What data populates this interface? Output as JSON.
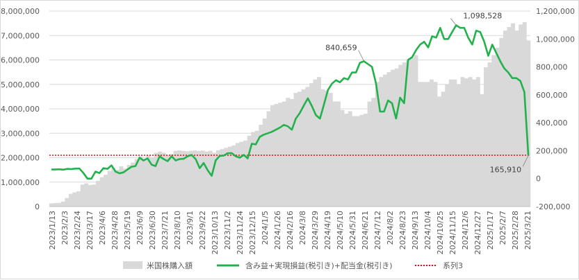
{
  "chart_data": {
    "type": "bar",
    "x_ticks": [
      "2023/1/13",
      "2023/2/3",
      "2023/2/24",
      "2023/3/17",
      "2023/4/6",
      "2023/4/28",
      "2023/5/19",
      "2023/6/9",
      "2023/6/30",
      "2023/7/21",
      "2023/8/10",
      "2023/9/1",
      "2023/9/22",
      "2023/10/13",
      "2023/11/2",
      "2023/11/24",
      "2023/12/15",
      "2024/1/5",
      "2024/1/26",
      "2024/2/16",
      "2024/3/8",
      "2024/3/29",
      "2024/4/19",
      "2024/5/10",
      "2024/5/31",
      "2024/6/21",
      "2024/7/12",
      "2024/8/2",
      "2024/8/23",
      "2024/9/13",
      "2024/10/4",
      "2024/10/25",
      "2024/11/15",
      "2024/12/6",
      "2024/12/27",
      "2025/1/17",
      "2025/2/7",
      "2025/2/28",
      "2025/3/21"
    ],
    "y_left": {
      "min": 0,
      "max": 8000000,
      "ticks": [
        "0",
        "1,000,000",
        "2,000,000",
        "3,000,000",
        "4,000,000",
        "5,000,000",
        "6,000,000",
        "7,000,000",
        "8,000,000"
      ]
    },
    "y_right": {
      "min": -200000,
      "max": 1200000,
      "ticks": [
        "-200,000",
        "0",
        "200,000",
        "400,000",
        "600,000",
        "800,000",
        "1,000,000",
        "1,200,000"
      ]
    },
    "gridlines": true,
    "legend_position": "bottom",
    "series": [
      {
        "name": "米国株購入額",
        "kind": "bar",
        "axis": "left",
        "color": "#d9d9d9",
        "values": [
          130000,
          140000,
          150000,
          200000,
          350000,
          520000,
          580000,
          620000,
          900000,
          950000,
          880000,
          900000,
          1050000,
          1200000,
          1300000,
          1450000,
          1600000,
          1500000,
          1650000,
          1550000,
          1700000,
          1800000,
          1950000,
          2050000,
          1950000,
          2100000,
          2000000,
          2200000,
          2250000,
          2200000,
          2100000,
          2150000,
          2280000,
          2300000,
          2280000,
          2260000,
          2280000,
          2300000,
          2270000,
          2290000,
          2250000,
          2280000,
          2200000,
          2300000,
          2350000,
          2400000,
          2450000,
          2500000,
          2600000,
          2650000,
          2700000,
          2900000,
          3050000,
          3100000,
          3350000,
          3600000,
          3900000,
          4150000,
          4200000,
          4250000,
          4300000,
          4450000,
          4400000,
          4650000,
          4700000,
          4800000,
          4900000,
          5050000,
          5200000,
          5300000,
          4800000,
          4750000,
          4650000,
          4300000,
          4300000,
          3950000,
          3800000,
          3900000,
          3700000,
          3700000,
          3750000,
          3800000,
          4300000,
          4450000,
          5100000,
          5300000,
          5400000,
          5500000,
          5600000,
          5650000,
          5800000,
          5900000,
          6000000,
          6100000,
          6200000,
          5100000,
          5100000,
          5100000,
          5200000,
          5100000,
          4500000,
          4700000,
          5000000,
          5200000,
          5200000,
          5000000,
          5300000,
          5250000,
          5300000,
          5200000,
          5300000,
          4600000,
          5700000,
          5900000,
          6200000,
          6500000,
          6900000,
          7200000,
          7350000,
          7500000,
          7200000,
          7450000,
          7550000,
          6800000
        ]
      },
      {
        "name": "含み益+実現損益(税引き)+配当金(税引き)",
        "kind": "line",
        "axis": "right",
        "color": "#22b14c",
        "values": [
          65000,
          65000,
          67000,
          64000,
          70000,
          68000,
          72000,
          72000,
          40000,
          0,
          0,
          50000,
          40000,
          75000,
          70000,
          95000,
          50000,
          38000,
          45000,
          65000,
          85000,
          90000,
          150000,
          130000,
          145000,
          100000,
          90000,
          160000,
          140000,
          125000,
          160000,
          130000,
          140000,
          142000,
          160000,
          170000,
          140000,
          75000,
          112000,
          60000,
          20000,
          130000,
          163000,
          165000,
          182000,
          183000,
          160000,
          150000,
          170000,
          145000,
          250000,
          245000,
          300000,
          315000,
          325000,
          335000,
          350000,
          365000,
          385000,
          375000,
          350000,
          430000,
          470000,
          525000,
          575000,
          520000,
          455000,
          430000,
          530000,
          635000,
          680000,
          705000,
          690000,
          720000,
          710000,
          760000,
          760000,
          830000,
          840659,
          820000,
          800000,
          680000,
          480000,
          480000,
          560000,
          540000,
          430000,
          580000,
          540000,
          850000,
          870000,
          920000,
          960000,
          980000,
          940000,
          1020000,
          1010000,
          1080000,
          1000000,
          1000000,
          1050000,
          1098528,
          1080000,
          1080000,
          1010000,
          960000,
          1060000,
          1050000,
          980000,
          880000,
          960000,
          900000,
          840000,
          790000,
          760000,
          720000,
          720000,
          700000,
          620000,
          165910
        ]
      },
      {
        "name": "系列3",
        "kind": "hline",
        "axis": "left",
        "color": "#ff0000",
        "value": 2100000
      }
    ],
    "annotations": [
      {
        "text": "840,659",
        "series": 1,
        "index": 78
      },
      {
        "text": "1,098,528",
        "series": 1,
        "index": 101
      },
      {
        "text": "165,910",
        "series": 1,
        "index": 119
      }
    ]
  }
}
